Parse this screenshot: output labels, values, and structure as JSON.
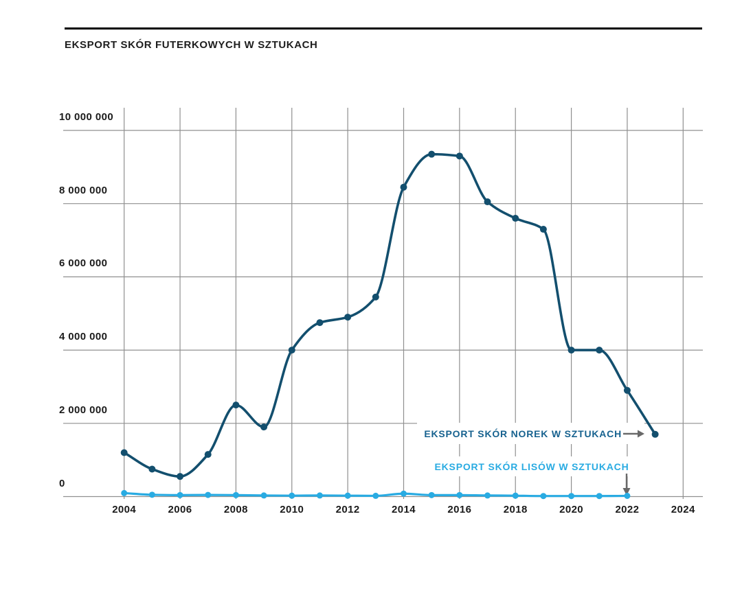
{
  "page": {
    "background": "#ffffff"
  },
  "header": {
    "title": "EKSPORT SKÓR FUTERKOWYCH W SZTUKACH"
  },
  "colors": {
    "norek_line": "#134f6e",
    "lisow_line": "#29abe2",
    "grid": "#8f8f8f",
    "arrow": "#696969",
    "text": "#1b1b1b",
    "title_rule": "#000000",
    "background": "#ffffff"
  },
  "chart_data": {
    "type": "line",
    "title": "EKSPORT SKÓR FUTERKOWYCH W SZTUKACH",
    "xlabel": "",
    "ylabel": "",
    "ylim": [
      0,
      10000000
    ],
    "xlim": [
      2004,
      2024
    ],
    "grid": true,
    "legend_position": "inline-annotations",
    "y_ticks": {
      "values": [
        10000000,
        8000000,
        6000000,
        4000000,
        2000000,
        0
      ],
      "labels": [
        "10 000 000",
        "8 000 000",
        "6 000 000",
        "4 000 000",
        "2 000 000",
        "0"
      ]
    },
    "x_ticks": [
      "2004",
      "2006",
      "2008",
      "2010",
      "2012",
      "2014",
      "2016",
      "2018",
      "2020",
      "2022",
      "2024"
    ],
    "series": [
      {
        "name": "EKSPORT SKÓR NOREK W SZTUKACH",
        "color": "#134f6e",
        "label_color": "#17628f",
        "x": [
          2004,
          2005,
          2006,
          2007,
          2008,
          2009,
          2010,
          2011,
          2012,
          2013,
          2014,
          2015,
          2016,
          2017,
          2018,
          2019,
          2020,
          2021,
          2022,
          2023
        ],
        "values": [
          1200000,
          750000,
          550000,
          1150000,
          2500000,
          1900000,
          4000000,
          4750000,
          4900000,
          5450000,
          8450000,
          9350000,
          9300000,
          8050000,
          7600000,
          7300000,
          4000000,
          4000000,
          2900000,
          1700000
        ]
      },
      {
        "name": "EKSPORT SKÓR LISÓW W SZTUKACH",
        "color": "#29abe2",
        "label_color": "#29abe2",
        "x": [
          2004,
          2005,
          2006,
          2007,
          2008,
          2009,
          2010,
          2011,
          2012,
          2013,
          2014,
          2015,
          2016,
          2017,
          2018,
          2019,
          2020,
          2021,
          2022
        ],
        "values": [
          95000,
          50000,
          40000,
          45000,
          40000,
          30000,
          25000,
          30000,
          25000,
          20000,
          80000,
          40000,
          40000,
          30000,
          25000,
          15000,
          15000,
          15000,
          20000
        ]
      }
    ],
    "annotations": [
      {
        "text": "EKSPORT SKÓR NOREK W SZTUKACH",
        "arrow": "right",
        "points_to": "last point of NOREK series (2023)"
      },
      {
        "text": "EKSPORT SKÓR LISÓW W SZTUKACH",
        "arrow": "down",
        "points_to": "last point of LISÓW series (2022)"
      }
    ]
  }
}
